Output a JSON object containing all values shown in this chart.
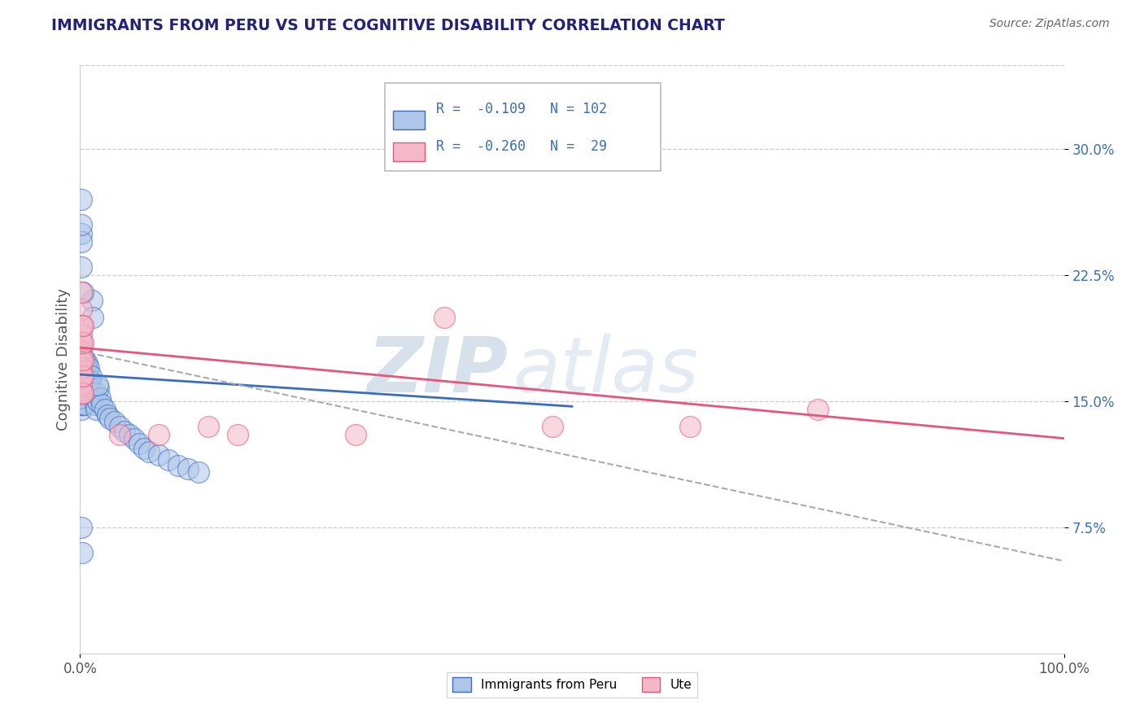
{
  "title": "IMMIGRANTS FROM PERU VS UTE COGNITIVE DISABILITY CORRELATION CHART",
  "source": "Source: ZipAtlas.com",
  "ylabel": "Cognitive Disability",
  "xlim": [
    0.0,
    1.0
  ],
  "ylim": [
    0.0,
    0.35
  ],
  "xticks": [
    0.0,
    1.0
  ],
  "xticklabels": [
    "0.0%",
    "100.0%"
  ],
  "yticks": [
    0.075,
    0.15,
    0.225,
    0.3
  ],
  "yticklabels": [
    "7.5%",
    "15.0%",
    "22.5%",
    "30.0%"
  ],
  "legend_labels": [
    "Immigrants from Peru",
    "Ute"
  ],
  "legend_r": [
    -0.109,
    -0.26
  ],
  "legend_n": [
    102,
    29
  ],
  "blue_color": "#aec6e8",
  "pink_color": "#f4b8c8",
  "blue_line_color": "#3a6dbf",
  "pink_line_color": "#e8547a",
  "dashed_line_color": "#aaaaaa",
  "watermark_zip": "ZIP",
  "watermark_atlas": "atlas",
  "background_color": "#ffffff",
  "grid_color": "#cccccc",
  "blue_scatter": {
    "x": [
      0.001,
      0.001,
      0.001,
      0.001,
      0.001,
      0.001,
      0.001,
      0.001,
      0.001,
      0.001,
      0.001,
      0.001,
      0.001,
      0.001,
      0.001,
      0.001,
      0.001,
      0.001,
      0.001,
      0.001,
      0.002,
      0.002,
      0.002,
      0.002,
      0.002,
      0.002,
      0.002,
      0.002,
      0.002,
      0.002,
      0.002,
      0.003,
      0.003,
      0.003,
      0.003,
      0.003,
      0.003,
      0.003,
      0.003,
      0.003,
      0.004,
      0.004,
      0.004,
      0.004,
      0.004,
      0.004,
      0.005,
      0.005,
      0.005,
      0.005,
      0.005,
      0.005,
      0.006,
      0.006,
      0.006,
      0.006,
      0.007,
      0.007,
      0.007,
      0.008,
      0.008,
      0.009,
      0.009,
      0.01,
      0.01,
      0.011,
      0.012,
      0.013,
      0.014,
      0.015,
      0.016,
      0.017,
      0.018,
      0.019,
      0.02,
      0.022,
      0.025,
      0.028,
      0.03,
      0.035,
      0.04,
      0.045,
      0.05,
      0.055,
      0.06,
      0.065,
      0.07,
      0.08,
      0.09,
      0.1,
      0.11,
      0.12,
      0.018,
      0.003,
      0.001,
      0.001,
      0.001,
      0.001,
      0.001,
      0.001,
      0.001,
      0.002
    ],
    "y": [
      0.155,
      0.165,
      0.172,
      0.158,
      0.148,
      0.168,
      0.161,
      0.174,
      0.152,
      0.16,
      0.175,
      0.183,
      0.145,
      0.157,
      0.17,
      0.163,
      0.178,
      0.153,
      0.167,
      0.159,
      0.155,
      0.162,
      0.17,
      0.148,
      0.175,
      0.158,
      0.165,
      0.16,
      0.172,
      0.153,
      0.177,
      0.155,
      0.168,
      0.16,
      0.173,
      0.148,
      0.165,
      0.158,
      0.172,
      0.152,
      0.16,
      0.17,
      0.155,
      0.165,
      0.158,
      0.175,
      0.162,
      0.157,
      0.17,
      0.148,
      0.165,
      0.175,
      0.16,
      0.168,
      0.155,
      0.172,
      0.158,
      0.165,
      0.173,
      0.16,
      0.168,
      0.155,
      0.17,
      0.162,
      0.158,
      0.165,
      0.21,
      0.2,
      0.155,
      0.148,
      0.145,
      0.155,
      0.15,
      0.158,
      0.152,
      0.148,
      0.145,
      0.142,
      0.14,
      0.138,
      0.135,
      0.132,
      0.13,
      0.128,
      0.125,
      0.122,
      0.12,
      0.118,
      0.115,
      0.112,
      0.11,
      0.108,
      0.16,
      0.215,
      0.27,
      0.25,
      0.23,
      0.245,
      0.255,
      0.19,
      0.075,
      0.06
    ]
  },
  "pink_scatter": {
    "x": [
      0.001,
      0.001,
      0.001,
      0.001,
      0.001,
      0.001,
      0.001,
      0.001,
      0.001,
      0.001,
      0.002,
      0.002,
      0.002,
      0.002,
      0.002,
      0.003,
      0.003,
      0.003,
      0.003,
      0.003,
      0.04,
      0.08,
      0.13,
      0.16,
      0.28,
      0.37,
      0.48,
      0.62,
      0.75
    ],
    "y": [
      0.155,
      0.165,
      0.175,
      0.185,
      0.195,
      0.205,
      0.215,
      0.16,
      0.17,
      0.18,
      0.155,
      0.165,
      0.175,
      0.185,
      0.195,
      0.155,
      0.165,
      0.175,
      0.185,
      0.195,
      0.13,
      0.13,
      0.135,
      0.13,
      0.13,
      0.2,
      0.135,
      0.135,
      0.145
    ]
  },
  "blue_line_x": [
    0.0,
    0.5
  ],
  "blue_line_y": [
    0.166,
    0.147
  ],
  "pink_line_x": [
    0.0,
    1.0
  ],
  "pink_line_y": [
    0.182,
    0.128
  ],
  "dashed_line_x": [
    0.0,
    1.0
  ],
  "dashed_line_y": [
    0.18,
    0.055
  ]
}
